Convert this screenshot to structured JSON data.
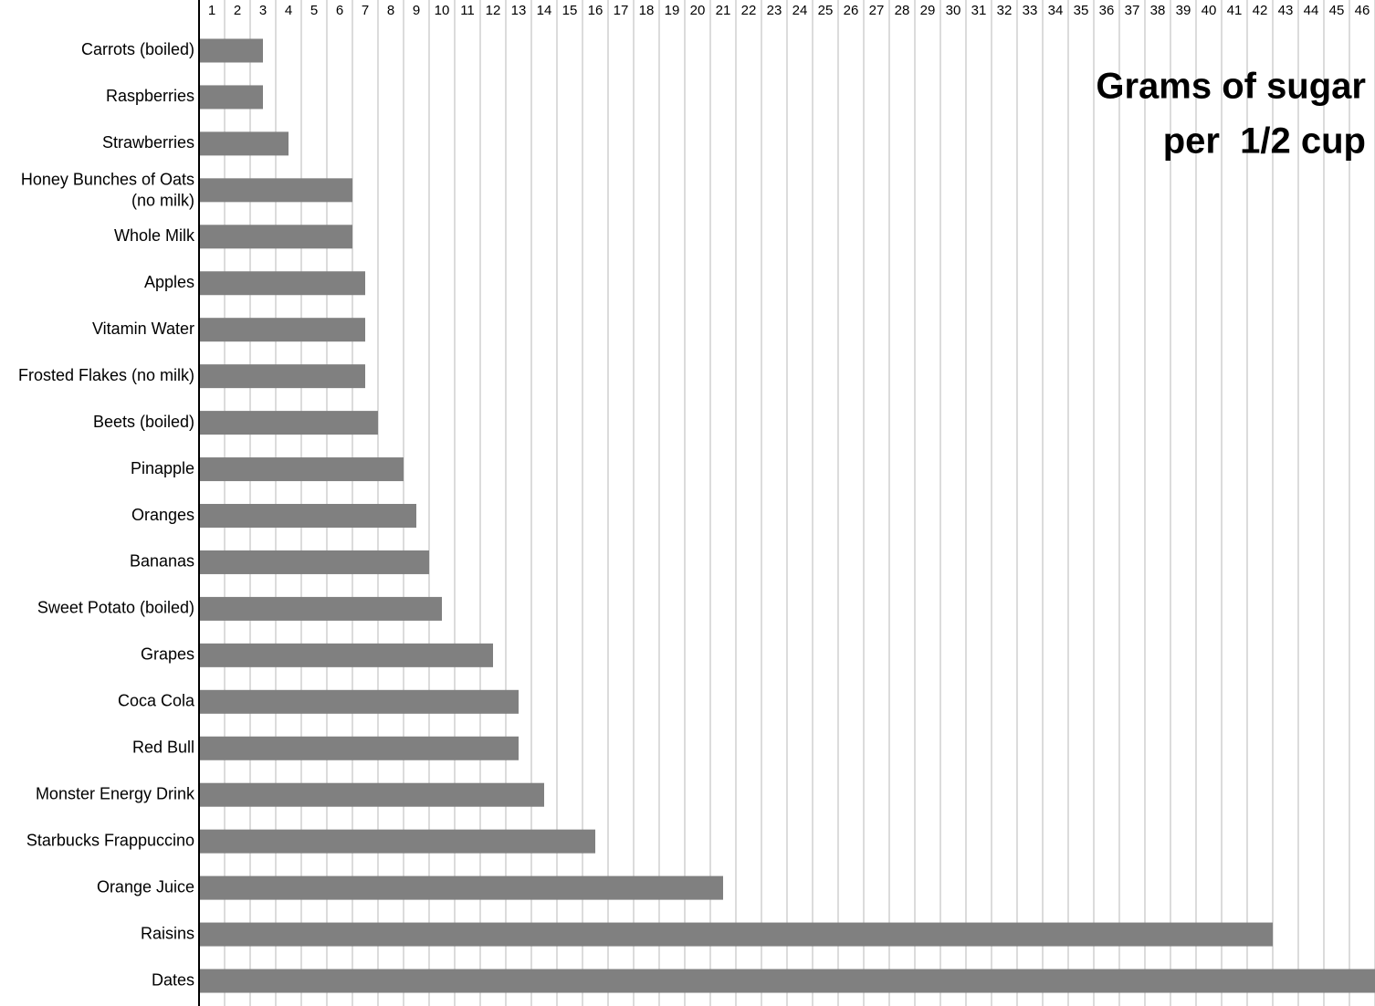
{
  "chart_data": {
    "type": "bar",
    "orientation": "horizontal",
    "title": [
      "Grams of sugar",
      "per  1/2 cup"
    ],
    "categories": [
      "Carrots (boiled)",
      "Raspberries",
      "Strawberries",
      "Honey Bunches of Oats\n(no milk)",
      "Whole Milk",
      "Apples",
      "Vitamin Water",
      "Frosted Flakes (no milk)",
      "Beets (boiled)",
      "Pinapple",
      "Oranges",
      "Bananas",
      "Sweet Potato (boiled)",
      "Grapes",
      "Coca Cola",
      "Red Bull",
      "Monster Energy Drink",
      "Starbucks Frappuccino",
      "Orange Juice",
      "Raisins",
      "Dates"
    ],
    "values": [
      2.5,
      2.5,
      3.5,
      6,
      6,
      6.5,
      6.5,
      6.5,
      7,
      8,
      8.5,
      9,
      9.5,
      11.5,
      12.5,
      12.5,
      13.5,
      15.5,
      20.5,
      42,
      46
    ],
    "color": "#808080",
    "xlim": [
      0,
      46
    ],
    "xticks": [
      1,
      2,
      3,
      4,
      5,
      6,
      7,
      8,
      9,
      10,
      11,
      12,
      13,
      14,
      15,
      16,
      17,
      18,
      19,
      20,
      21,
      22,
      23,
      24,
      25,
      26,
      27,
      28,
      29,
      30,
      31,
      32,
      33,
      34,
      35,
      36,
      37,
      38,
      39,
      40,
      41,
      42,
      43,
      44,
      45,
      46
    ],
    "grid": true
  }
}
